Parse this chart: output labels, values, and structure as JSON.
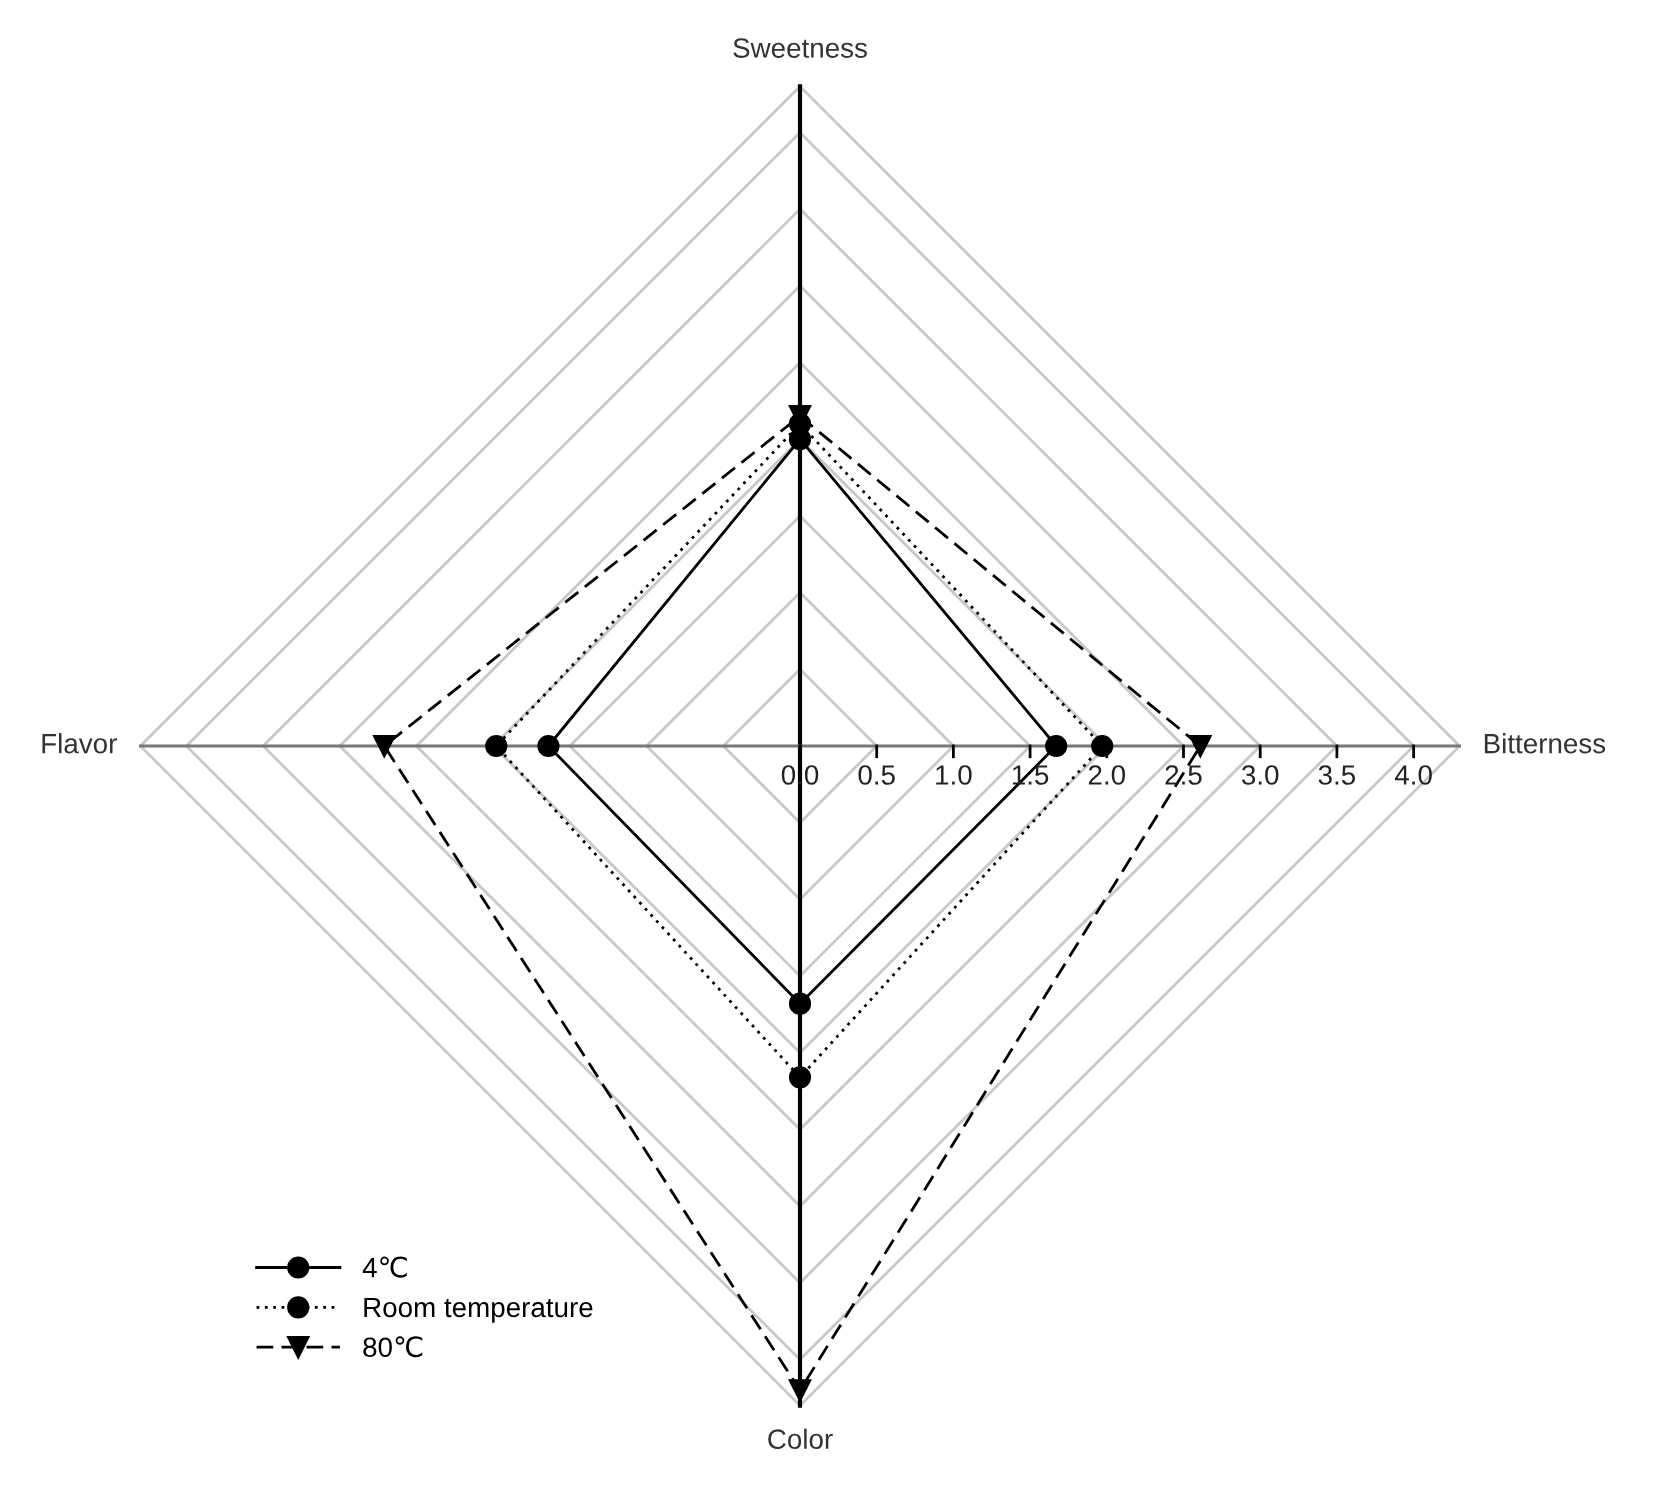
{
  "chart_data": {
    "type": "radar",
    "categories": [
      "Sweetness",
      "Bitterness",
      "Color",
      "Flavor"
    ],
    "ylim": [
      0,
      4.3
    ],
    "yticks": [
      {
        "value": 0,
        "label": "0.0"
      },
      0.5,
      {
        "value": 1,
        "label": "1.0"
      },
      1.5,
      {
        "value": 2,
        "label": "2.0"
      },
      2.5,
      {
        "value": 3,
        "label": "3.0"
      },
      3.5,
      {
        "value": 4,
        "label": "4.0"
      }
    ],
    "grid": true,
    "legend": "bottom left",
    "series": [
      {
        "name": "4℃",
        "color": "#000000",
        "values": [
          2.0,
          1.67,
          1.68,
          1.64
        ],
        "line_style": "solid",
        "marker": "circle"
      },
      {
        "name": "Room temperature",
        "color": "#000000",
        "values": [
          2.1,
          1.97,
          2.16,
          1.98
        ],
        "line_style": "dotted",
        "marker": "circle"
      },
      {
        "name": "80℃",
        "color": "#000000",
        "values": [
          2.15,
          2.61,
          4.2,
          2.71
        ],
        "line_style": "dashed",
        "marker": "triangle"
      }
    ]
  }
}
